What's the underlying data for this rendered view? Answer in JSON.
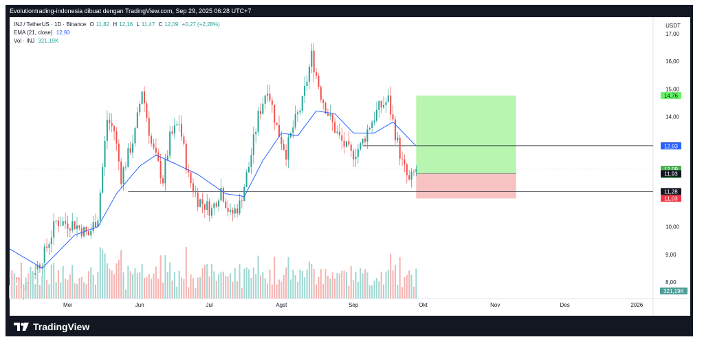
{
  "header": {
    "attribution": "Evolutiontrading-indonesia dibuat dengan TradingView.com, Sep 29, 2025 06:28 UTC+7"
  },
  "legend": {
    "symbol": "INJ / TetherUS · 1D · Binance",
    "o_label": "O",
    "o_value": "11,82",
    "h_label": "H",
    "h_value": "12,16",
    "l_label": "L",
    "l_value": "11,47",
    "c_label": "C",
    "c_value": "12,09",
    "change": "+0,27 (+2,28%)",
    "ema_label": "EMA (21, close)",
    "ema_value": "12,93",
    "vol_label": "Vol · INJ",
    "vol_value": "321,19K"
  },
  "brand": {
    "logo_text": "TradingView"
  },
  "chart_data": {
    "type": "candlestick",
    "y_axis_unit": "USDT",
    "yticks": [
      "17,00",
      "16,00",
      "15,00",
      "14,00",
      "10,00",
      "9,00",
      "8,00"
    ],
    "ytick_values": [
      17,
      16,
      15,
      14,
      10,
      9,
      8
    ],
    "ylim": [
      7.4,
      17.6
    ],
    "x_axis_labels": [
      "Mei",
      "Jun",
      "Jul",
      "Agst",
      "Sep",
      "Okt",
      "Nov",
      "Des",
      "2026"
    ],
    "x_axis_label_dates": [
      "2025-05-01",
      "2025-06-01",
      "2025-07-01",
      "2025-08-01",
      "2025-09-01",
      "2025-10-01",
      "2025-11-01",
      "2025-12-01",
      "2026-01-01"
    ],
    "xlim": [
      "2025-04-06",
      "2026-01-08"
    ],
    "price_labels": [
      {
        "text": "14,76",
        "value": 14.76,
        "color": "#66f266",
        "text_color": "#131722"
      },
      {
        "text": "12,94",
        "value": 12.94,
        "color": "#131722",
        "text_color": "#ffffff"
      },
      {
        "text": "12,93",
        "value": 12.93,
        "color": "#2962ff",
        "text_color": "#ffffff"
      },
      {
        "text": "12,09",
        "value": 12.09,
        "color": "#4caf50",
        "text_color": "#ffffff",
        "subtext": "31:25"
      },
      {
        "text": "11,93",
        "value": 11.93,
        "color": "#131722",
        "text_color": "#ffffff"
      },
      {
        "text": "11,28",
        "value": 11.28,
        "color": "#131722",
        "text_color": "#ffffff"
      },
      {
        "text": "11,03",
        "value": 11.03,
        "color": "#f23645",
        "text_color": "#ffffff"
      }
    ],
    "volume_label": "321,19K",
    "horizontal_lines": [
      12.94,
      11.28
    ],
    "position_tool": {
      "entry": 11.93,
      "target": 14.76,
      "stop": 11.03,
      "start": "2025-09-28",
      "end": "2025-11-10"
    },
    "ohlc_keypoints": [
      {
        "date": "2025-04-06",
        "close": 8.2
      },
      {
        "date": "2025-04-12",
        "close": 7.9
      },
      {
        "date": "2025-04-20",
        "close": 8.8
      },
      {
        "date": "2025-04-26",
        "close": 10.2
      },
      {
        "date": "2025-05-04",
        "close": 10.1
      },
      {
        "date": "2025-05-10",
        "close": 9.7
      },
      {
        "date": "2025-05-14",
        "close": 10.4
      },
      {
        "date": "2025-05-18",
        "close": 13.9
      },
      {
        "date": "2025-05-21",
        "close": 13.5
      },
      {
        "date": "2025-05-24",
        "close": 11.8
      },
      {
        "date": "2025-05-30",
        "close": 13.4
      },
      {
        "date": "2025-06-02",
        "close": 15.0
      },
      {
        "date": "2025-06-06",
        "close": 13.0
      },
      {
        "date": "2025-06-11",
        "close": 11.7
      },
      {
        "date": "2025-06-14",
        "close": 13.2
      },
      {
        "date": "2025-06-18",
        "close": 13.8
      },
      {
        "date": "2025-06-22",
        "close": 11.8
      },
      {
        "date": "2025-06-26",
        "close": 11.0
      },
      {
        "date": "2025-07-02",
        "close": 10.6
      },
      {
        "date": "2025-07-06",
        "close": 11.4
      },
      {
        "date": "2025-07-10",
        "close": 10.4
      },
      {
        "date": "2025-07-14",
        "close": 10.8
      },
      {
        "date": "2025-07-18",
        "close": 12.2
      },
      {
        "date": "2025-07-22",
        "close": 14.0
      },
      {
        "date": "2025-07-26",
        "close": 15.1
      },
      {
        "date": "2025-07-30",
        "close": 13.6
      },
      {
        "date": "2025-08-03",
        "close": 12.7
      },
      {
        "date": "2025-08-06",
        "close": 13.6
      },
      {
        "date": "2025-08-10",
        "close": 14.5
      },
      {
        "date": "2025-08-14",
        "close": 16.2
      },
      {
        "date": "2025-08-18",
        "close": 14.8
      },
      {
        "date": "2025-08-22",
        "close": 13.9
      },
      {
        "date": "2025-08-26",
        "close": 13.2
      },
      {
        "date": "2025-08-31",
        "close": 12.6
      },
      {
        "date": "2025-09-04",
        "close": 12.9
      },
      {
        "date": "2025-09-08",
        "close": 13.7
      },
      {
        "date": "2025-09-12",
        "close": 14.3
      },
      {
        "date": "2025-09-16",
        "close": 14.6
      },
      {
        "date": "2025-09-19",
        "close": 13.4
      },
      {
        "date": "2025-09-22",
        "close": 12.3
      },
      {
        "date": "2025-09-25",
        "close": 11.6
      },
      {
        "date": "2025-09-28",
        "close": 12.09
      }
    ],
    "ema_keypoints": [
      {
        "date": "2025-04-06",
        "value": 9.2
      },
      {
        "date": "2025-04-20",
        "value": 8.5
      },
      {
        "date": "2025-05-04",
        "value": 9.7
      },
      {
        "date": "2025-05-14",
        "value": 10.0
      },
      {
        "date": "2025-05-22",
        "value": 11.2
      },
      {
        "date": "2025-06-01",
        "value": 12.2
      },
      {
        "date": "2025-06-08",
        "value": 12.6
      },
      {
        "date": "2025-06-16",
        "value": 12.3
      },
      {
        "date": "2025-06-26",
        "value": 11.9
      },
      {
        "date": "2025-07-08",
        "value": 11.2
      },
      {
        "date": "2025-07-16",
        "value": 11.1
      },
      {
        "date": "2025-07-24",
        "value": 12.4
      },
      {
        "date": "2025-08-01",
        "value": 13.4
      },
      {
        "date": "2025-08-08",
        "value": 13.3
      },
      {
        "date": "2025-08-16",
        "value": 14.2
      },
      {
        "date": "2025-08-24",
        "value": 14.1
      },
      {
        "date": "2025-09-01",
        "value": 13.4
      },
      {
        "date": "2025-09-10",
        "value": 13.4
      },
      {
        "date": "2025-09-18",
        "value": 13.8
      },
      {
        "date": "2025-09-28",
        "value": 12.93
      }
    ]
  }
}
